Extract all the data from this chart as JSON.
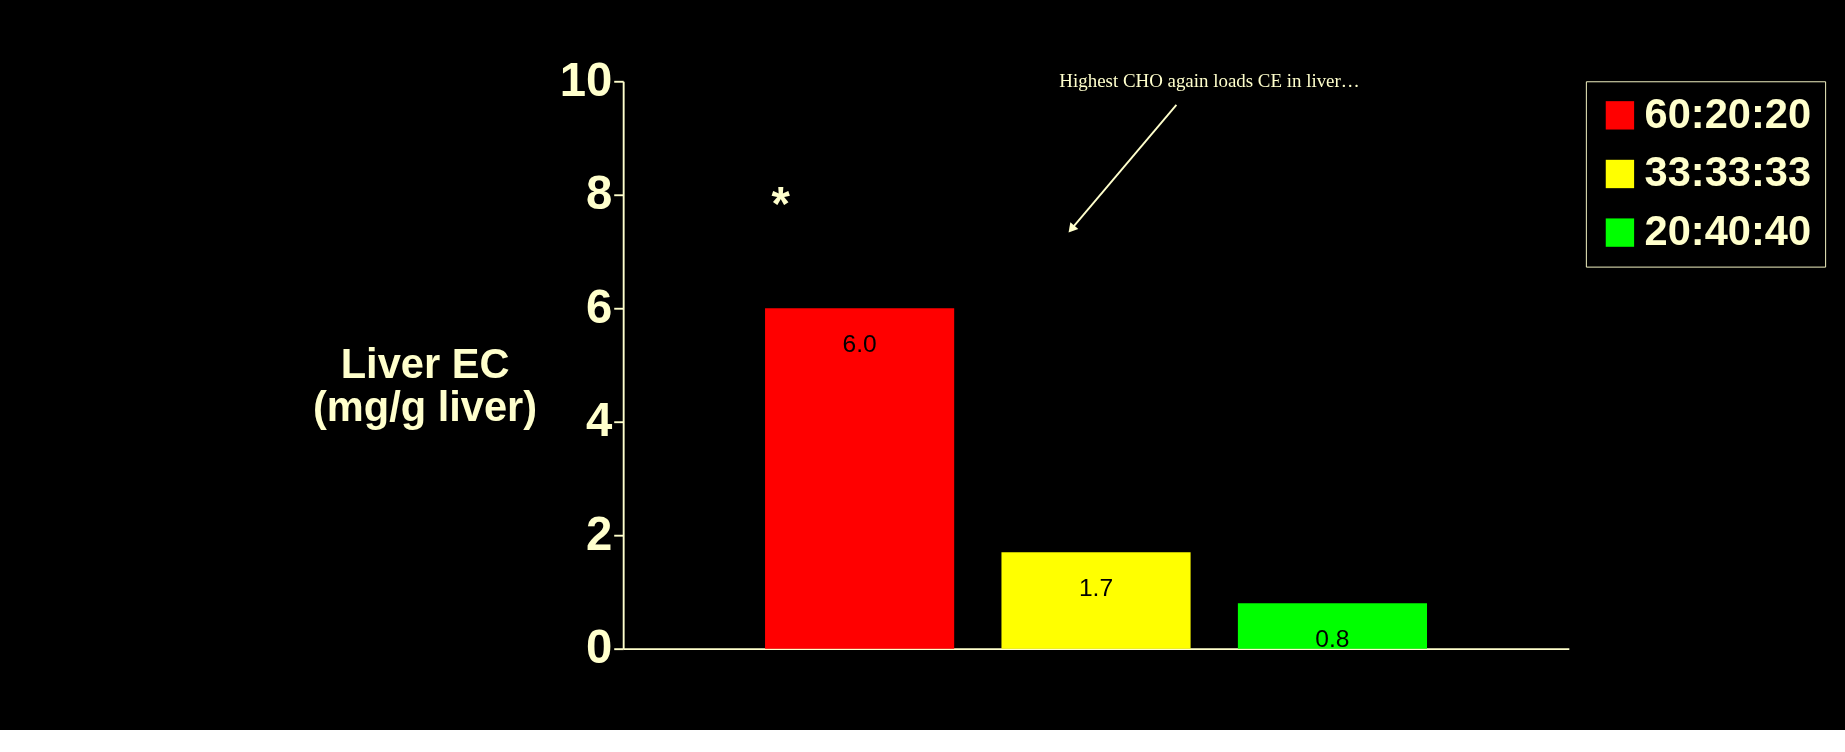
{
  "chart_data": {
    "type": "bar",
    "ylabel": "Liver EC\n(mg/g liver)",
    "categories": [
      null,
      null,
      null
    ],
    "series": [
      {
        "name": "60:20:20",
        "color": "#ff0000",
        "values": [
          6.0,
          null,
          null
        ],
        "value_labels": [
          "6.0",
          null,
          null
        ]
      },
      {
        "name": "33:33:33",
        "color": "#ffff00",
        "values": [
          null,
          1.7,
          null
        ],
        "value_labels": [
          null,
          "1.7",
          null
        ]
      },
      {
        "name": "20:40:40",
        "color": "#00ff00",
        "values": [
          null,
          null,
          0.8
        ],
        "value_labels": [
          null,
          null,
          "0.8"
        ]
      }
    ],
    "ylim": [
      0,
      10
    ],
    "yticks": [
      0,
      2,
      4,
      6,
      8,
      10
    ],
    "grid": false,
    "legend": "right",
    "annotations": [
      "*",
      "Highest CHO again loads CE in liver…"
    ]
  }
}
